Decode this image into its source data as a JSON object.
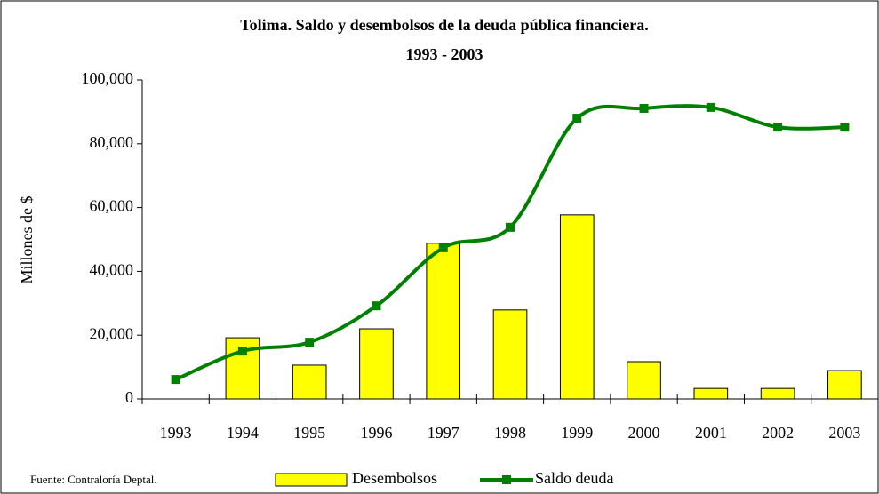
{
  "chart_data": {
    "type": "bar_line",
    "title": "Tolima. Saldo y desembolsos de la deuda pública financiera.",
    "subtitle": "1993 - 2003",
    "y_label": "Millones de $",
    "source": "Fuente: Contraloría Deptal.",
    "categories": [
      "1993",
      "1994",
      "1995",
      "1996",
      "1997",
      "1998",
      "1999",
      "2000",
      "2001",
      "2002",
      "2003"
    ],
    "series": [
      {
        "name": "Desembolsos",
        "type": "bar",
        "color": "#ffff00",
        "values": [
          0,
          19200,
          10600,
          22000,
          48800,
          27900,
          57700,
          11700,
          3300,
          3300,
          8900
        ]
      },
      {
        "name": "Saldo deuda",
        "type": "line",
        "color": "#008000",
        "values": [
          6100,
          15000,
          17800,
          29200,
          47400,
          53800,
          88000,
          91100,
          91400,
          85200,
          85200
        ]
      }
    ],
    "ylim": [
      0,
      100000
    ],
    "yticks": [
      0,
      {
        "value": 20000,
        "label": "20,000"
      },
      {
        "value": 40000,
        "label": "40,000"
      },
      {
        "value": 60000,
        "label": "60,000"
      },
      {
        "value": 80000,
        "label": "80,000"
      },
      {
        "value": 100000,
        "label": "100,000"
      }
    ],
    "legend": "bottom"
  }
}
